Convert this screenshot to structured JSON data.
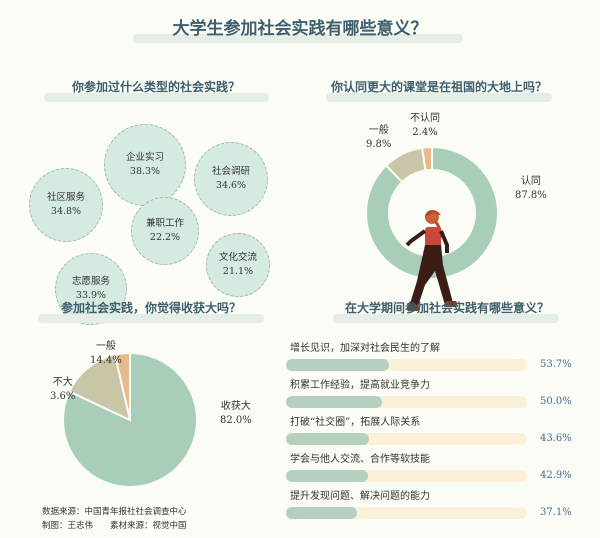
{
  "title": "大学生参加社会实践有哪些意义？",
  "colors": {
    "green": "#a8ceb9",
    "tan": "#c9c6a8",
    "orange": "#e6ba8c",
    "title": "#3e5f6e",
    "value": "#3f6d92"
  },
  "chart_data": [
    {
      "type": "bubble",
      "title": "你参加过什么类型的社会实践？",
      "categories": [
        "企业实习",
        "社区服务",
        "社会调研",
        "兼职工作",
        "文化交流",
        "志愿服务"
      ],
      "values": [
        38.3,
        34.8,
        34.6,
        22.2,
        21.1,
        33.9
      ],
      "labels": [
        "38.3%",
        "34.8%",
        "34.6%",
        "22.2%",
        "21.1%",
        "33.9%"
      ]
    },
    {
      "type": "donut",
      "title": "你认同更大的课堂是在祖国的大地上吗？",
      "categories": [
        "认同",
        "一般",
        "不认同"
      ],
      "values": [
        87.8,
        9.8,
        2.4
      ],
      "labels": [
        "87.8%",
        "9.8%",
        "2.4%"
      ]
    },
    {
      "type": "pie",
      "title": "参加社会实践，你觉得收获大吗？",
      "categories": [
        "收获大",
        "一般",
        "不大"
      ],
      "values": [
        82.0,
        14.4,
        3.6
      ],
      "labels": [
        "82.0%",
        "14.4%",
        "3.6%"
      ]
    },
    {
      "type": "bar",
      "title": "在大学期间参加社会实践有哪些意义？",
      "categories": [
        "增长见识，加深对社会民生的了解",
        "积累工作经验，提高就业竞争力",
        "打破“社交圈”，拓展人际关系",
        "学会与他人交流、合作等软技能",
        "提升发现问题、解决问题的能力"
      ],
      "values": [
        53.7,
        50.0,
        43.6,
        42.9,
        37.1
      ],
      "labels": [
        "53.7%",
        "50.0%",
        "43.6%",
        "42.9%",
        "37.1%"
      ]
    }
  ],
  "footer": {
    "line1": "数据来源：中国青年报社社会调查中心",
    "line2": "制图：王志伟　　素材来源：视觉中国"
  }
}
